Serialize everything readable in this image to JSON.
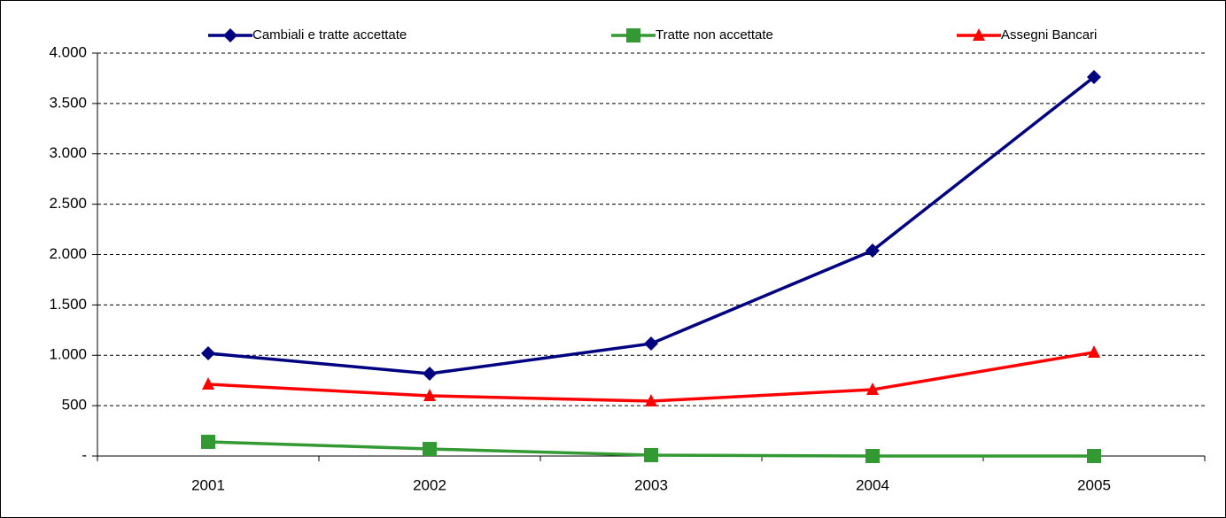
{
  "chart_data": {
    "type": "line",
    "categories": [
      "2001",
      "2002",
      "2003",
      "2004",
      "2005"
    ],
    "series": [
      {
        "name": "Cambiali e tratte accettate",
        "color": "#000080",
        "marker": "diamond",
        "values": [
          1020,
          818,
          1116,
          2040,
          3763
        ]
      },
      {
        "name": "Tratte non accettate",
        "color": "#339933",
        "marker": "square",
        "values": [
          141,
          70,
          9,
          0,
          0
        ]
      },
      {
        "name": "Assegni Bancari",
        "color": "#ff0000",
        "marker": "triangle",
        "values": [
          712,
          598,
          545,
          659,
          1029
        ]
      }
    ],
    "ylim": [
      0,
      4000
    ],
    "yticks": [
      {
        "value": 0,
        "label": "-"
      },
      500,
      {
        "value": 1000,
        "label": "1.000"
      },
      {
        "value": 1500,
        "label": "1.500"
      },
      {
        "value": 2000,
        "label": "2.000"
      },
      {
        "value": 2500,
        "label": "2.500"
      },
      {
        "value": 3000,
        "label": "3.000"
      },
      {
        "value": 3500,
        "label": "3.500"
      },
      {
        "value": 4000,
        "label": "4.000"
      }
    ],
    "grid": true,
    "legend": "top"
  }
}
